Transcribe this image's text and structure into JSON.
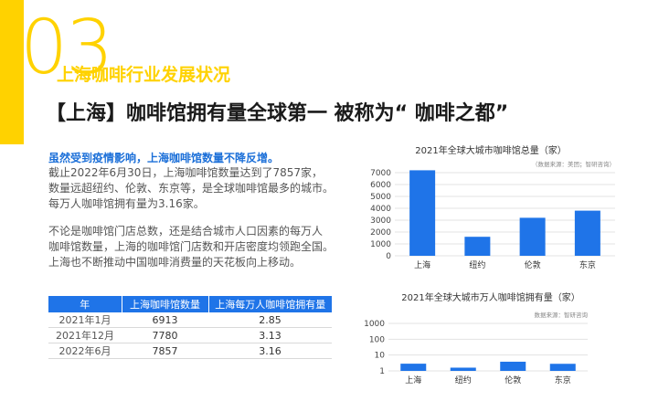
{
  "header": {
    "number": "03",
    "section_title": "上海咖啡行业发展状况",
    "headline": "【上海】咖啡馆拥有量全球第一 被称为“ 咖啡之都”"
  },
  "body": {
    "lead": "虽然受到疫情影响，上海咖啡馆数量不降反增。",
    "para1": [
      "截止2022年6月30日，上海咖啡馆数量达到了7857家，",
      "数量远超纽约、伦敦、东京等，是全球咖啡馆最多的城市。",
      "每万人咖啡馆拥有量为3.16家。"
    ],
    "para2": [
      "不论是咖啡馆门店总数，还是结合城市人口因素的每万人",
      "咖啡馆数量，上海的咖啡馆门店数和开店密度均领跑全国。",
      "上海也不断推动中国咖啡消费量的天花板向上移动。"
    ]
  },
  "table": {
    "headers": [
      "年",
      "上海咖啡馆数量",
      "上海每万人咖啡馆拥有量"
    ],
    "rows": [
      [
        "2021年1月",
        "6913",
        "2.85"
      ],
      [
        "2021年12月",
        "7780",
        "3.13"
      ],
      [
        "2022年6月",
        "7857",
        "3.16"
      ]
    ]
  },
  "colors": {
    "accent": "#ffd200",
    "bar": "#1f74e8",
    "lead": "#1b6fd8"
  },
  "chart_data": [
    {
      "type": "bar",
      "title": "2021年全球大城市咖啡馆总量（家）",
      "source": "（数据来源：美团；智研咨询）",
      "categories": [
        "上海",
        "纽约",
        "伦敦",
        "东京"
      ],
      "values": [
        7200,
        1600,
        3200,
        3800
      ],
      "yticks": [
        "0",
        "1000",
        "2000",
        "3000",
        "4000",
        "5000",
        "6000",
        "7000"
      ],
      "ylim": [
        0,
        7000
      ],
      "grid": true
    },
    {
      "type": "bar",
      "title": "2021年全球大城市万人咖啡馆拥有量（家）",
      "source": "数据来源：智研咨询",
      "categories": [
        "上海",
        "纽约",
        "伦敦",
        "东京"
      ],
      "values": [
        2.85,
        1.6,
        3.8,
        2.8
      ],
      "yticks": [
        "1",
        "10",
        "100",
        "1000"
      ],
      "ylim": [
        1,
        1000
      ],
      "yscale": "log",
      "grid": true
    }
  ]
}
